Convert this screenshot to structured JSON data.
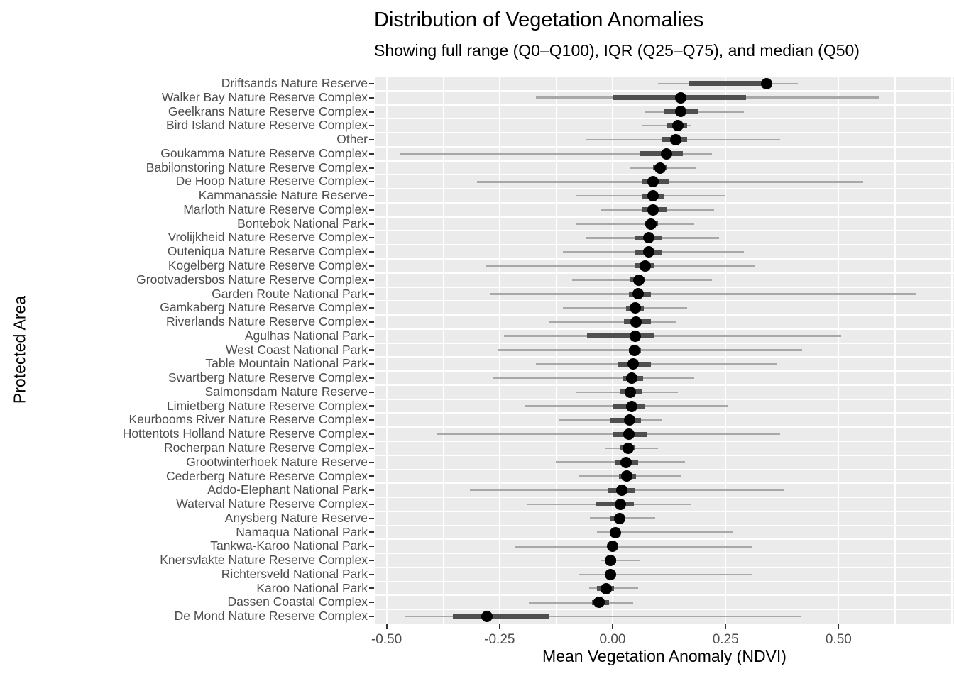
{
  "chart_data": {
    "type": "scatter",
    "subtype": "dot-with-quantile-ranges",
    "orientation": "horizontal",
    "title": "Distribution of Vegetation Anomalies",
    "subtitle": "Showing full range (Q0–Q100), IQR (Q25–Q75), and median (Q50)",
    "xlabel": "Mean Vegetation Anomaly (NDVI)",
    "ylabel": "Protected Area",
    "xlim": [
      -0.525,
      0.757
    ],
    "x_ticks": [
      {
        "label": "-0.50",
        "value": -0.5
      },
      {
        "label": "-0.25",
        "value": -0.25
      },
      {
        "label": "0.00",
        "value": 0.0
      },
      {
        "label": "0.25",
        "value": 0.25
      },
      {
        "label": "0.50",
        "value": 0.5
      }
    ],
    "grid": {
      "major_step": 0.25,
      "minor_step": 0.125,
      "gridlines_from": -0.5,
      "gridlines_to": 0.75
    },
    "legend": "none",
    "points": [
      {
        "area": "Driftsands Nature Reserve",
        "q0": 0.1,
        "q25": 0.17,
        "q50": 0.34,
        "q75": 0.35,
        "q100": 0.41
      },
      {
        "area": "Walker Bay Nature Reserve Complex",
        "q0": -0.17,
        "q25": 0.0,
        "q50": 0.15,
        "q75": 0.295,
        "q100": 0.59
      },
      {
        "area": "Geelkrans Nature Reserve Complex",
        "q0": 0.07,
        "q25": 0.115,
        "q50": 0.15,
        "q75": 0.19,
        "q100": 0.29
      },
      {
        "area": "Bird Island Nature Reserve Complex",
        "q0": 0.065,
        "q25": 0.12,
        "q50": 0.145,
        "q75": 0.165,
        "q100": 0.175
      },
      {
        "area": "Other",
        "q0": -0.06,
        "q25": 0.11,
        "q50": 0.14,
        "q75": 0.165,
        "q100": 0.37
      },
      {
        "area": "Goukamma Nature Reserve Complex",
        "q0": -0.47,
        "q25": 0.06,
        "q50": 0.12,
        "q75": 0.155,
        "q100": 0.22
      },
      {
        "area": "Babilonstoring Nature Reserve Complex",
        "q0": 0.04,
        "q25": 0.09,
        "q50": 0.105,
        "q75": 0.12,
        "q100": 0.185
      },
      {
        "area": "De Hoop Nature Reserve Complex",
        "q0": -0.3,
        "q25": 0.065,
        "q50": 0.09,
        "q75": 0.125,
        "q100": 0.555
      },
      {
        "area": "Kammanassie Nature Reserve",
        "q0": -0.08,
        "q25": 0.065,
        "q50": 0.09,
        "q75": 0.115,
        "q100": 0.25
      },
      {
        "area": "Marloth Nature Reserve Complex",
        "q0": -0.025,
        "q25": 0.065,
        "q50": 0.09,
        "q75": 0.12,
        "q100": 0.225
      },
      {
        "area": "Bontebok National Park",
        "q0": -0.08,
        "q25": 0.07,
        "q50": 0.085,
        "q75": 0.1,
        "q100": 0.18
      },
      {
        "area": "Vrolijkheid Nature Reserve Complex",
        "q0": -0.06,
        "q25": 0.05,
        "q50": 0.08,
        "q75": 0.11,
        "q100": 0.235
      },
      {
        "area": "Outeniqua Nature Reserve Complex",
        "q0": -0.11,
        "q25": 0.05,
        "q50": 0.08,
        "q75": 0.11,
        "q100": 0.29
      },
      {
        "area": "Kogelberg Nature Reserve Complex",
        "q0": -0.28,
        "q25": 0.05,
        "q50": 0.073,
        "q75": 0.093,
        "q100": 0.315
      },
      {
        "area": "Grootvadersbos Nature Reserve Complex",
        "q0": -0.09,
        "q25": 0.04,
        "q50": 0.058,
        "q75": 0.073,
        "q100": 0.22
      },
      {
        "area": "Garden Route National Park",
        "q0": -0.27,
        "q25": 0.036,
        "q50": 0.056,
        "q75": 0.085,
        "q100": 0.67
      },
      {
        "area": "Gamkaberg Nature Reserve Complex",
        "q0": -0.11,
        "q25": 0.03,
        "q50": 0.051,
        "q75": 0.069,
        "q100": 0.165
      },
      {
        "area": "Riverlands Nature Reserve Complex",
        "q0": -0.14,
        "q25": 0.025,
        "q50": 0.052,
        "q75": 0.085,
        "q100": 0.14
      },
      {
        "area": "Agulhas National Park",
        "q0": -0.24,
        "q25": -0.056,
        "q50": 0.051,
        "q75": 0.091,
        "q100": 0.505
      },
      {
        "area": "West Coast National Park",
        "q0": -0.255,
        "q25": 0.036,
        "q50": 0.048,
        "q75": 0.063,
        "q100": 0.42
      },
      {
        "area": "Table Mountain National Park",
        "q0": -0.17,
        "q25": 0.012,
        "q50": 0.046,
        "q75": 0.085,
        "q100": 0.365
      },
      {
        "area": "Swartberg Nature Reserve Complex",
        "q0": -0.265,
        "q25": 0.022,
        "q50": 0.042,
        "q75": 0.067,
        "q100": 0.18
      },
      {
        "area": "Salmonsdam Nature Reserve",
        "q0": -0.08,
        "q25": 0.016,
        "q50": 0.04,
        "q75": 0.066,
        "q100": 0.145
      },
      {
        "area": "Limietberg Nature Reserve Complex",
        "q0": -0.195,
        "q25": 0.0,
        "q50": 0.042,
        "q75": 0.073,
        "q100": 0.255
      },
      {
        "area": "Keurbooms River Nature Reserve Complex",
        "q0": -0.12,
        "q25": -0.005,
        "q50": 0.038,
        "q75": 0.063,
        "q100": 0.11
      },
      {
        "area": "Hottentots Holland Nature Reserve Complex",
        "q0": -0.39,
        "q25": 0.0,
        "q50": 0.036,
        "q75": 0.075,
        "q100": 0.37
      },
      {
        "area": "Rocherpan Nature Reserve Complex",
        "q0": -0.015,
        "q25": 0.016,
        "q50": 0.034,
        "q75": 0.048,
        "q100": 0.1
      },
      {
        "area": "Grootwinterhoek Nature Reserve",
        "q0": -0.125,
        "q25": 0.007,
        "q50": 0.03,
        "q75": 0.056,
        "q100": 0.16
      },
      {
        "area": "Cederberg Nature Reserve Complex",
        "q0": -0.075,
        "q25": 0.014,
        "q50": 0.032,
        "q75": 0.052,
        "q100": 0.15
      },
      {
        "area": "Addo-Elephant National Park",
        "q0": -0.315,
        "q25": -0.01,
        "q50": 0.02,
        "q75": 0.048,
        "q100": 0.38
      },
      {
        "area": "Waterval Nature Reserve Complex",
        "q0": -0.19,
        "q25": -0.037,
        "q50": 0.018,
        "q75": 0.047,
        "q100": 0.175
      },
      {
        "area": "Anysberg Nature Reserve",
        "q0": -0.05,
        "q25": -0.005,
        "q50": 0.016,
        "q75": 0.028,
        "q100": 0.095
      },
      {
        "area": "Namaqua National Park",
        "q0": -0.035,
        "q25": 0.0,
        "q50": 0.006,
        "q75": 0.016,
        "q100": 0.265
      },
      {
        "area": "Tankwa-Karoo National Park",
        "q0": -0.215,
        "q25": -0.01,
        "q50": 0.0,
        "q75": 0.01,
        "q100": 0.31
      },
      {
        "area": "Knersvlakte Nature Reserve Complex",
        "q0": -0.025,
        "q25": -0.015,
        "q50": -0.004,
        "q75": 0.008,
        "q100": 0.06
      },
      {
        "area": "Richtersveld National Park",
        "q0": -0.075,
        "q25": -0.015,
        "q50": -0.005,
        "q75": 0.007,
        "q100": 0.31
      },
      {
        "area": "Karoo National Park",
        "q0": -0.052,
        "q25": -0.034,
        "q50": -0.014,
        "q75": 0.003,
        "q100": 0.056
      },
      {
        "area": "Dassen Coastal Complex",
        "q0": -0.185,
        "q25": -0.046,
        "q50": -0.03,
        "q75": -0.008,
        "q100": 0.046
      },
      {
        "area": "De Mond Nature Reserve Complex",
        "q0": -0.458,
        "q25": -0.353,
        "q50": -0.278,
        "q75": -0.14,
        "q100": 0.416
      }
    ]
  },
  "colors": {
    "panel_background": "#EBEBEB",
    "gridline": "#FFFFFF",
    "full_range_line": "#A8A8A8",
    "iqr_bar": "#4F4F4F",
    "median_dot": "#000000",
    "tick_label_text": "#4D4D4D",
    "title_text": "#000000"
  }
}
